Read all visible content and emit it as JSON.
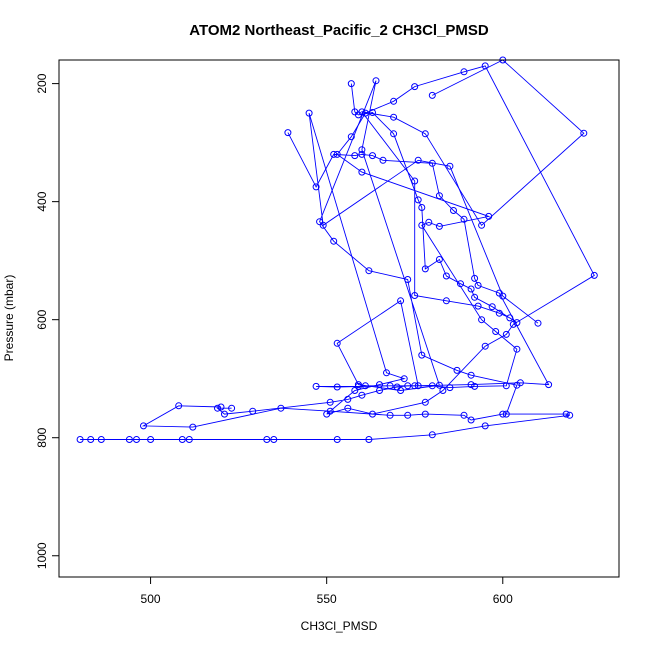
{
  "chart_data": {
    "type": "line",
    "title": "ATOM2 Northeast_Pacific_2 CH3Cl_PMSD",
    "xlabel": "CH3Cl_PMSD",
    "ylabel": "Pressure (mbar)",
    "xlim": [
      474,
      633
    ],
    "ylim": [
      1036,
      160
    ],
    "y_reversed": true,
    "grid": false,
    "legend": "none",
    "x_ticks": [
      500,
      550,
      600
    ],
    "y_ticks": [
      200,
      400,
      600,
      800,
      1000
    ],
    "series_color": "#0000ff",
    "marker": "open-circle",
    "series": [
      {
        "x": [
          523,
          519,
          521,
          529,
          551,
          556,
          560,
          565,
          570,
          573,
          580,
          585,
          592,
          601,
          604,
          598,
          594,
          577,
          579,
          582,
          596,
          560,
          553,
          557,
          561,
          569,
          575,
          589,
          595,
          626,
          603,
          601,
          595,
          583,
          578,
          563,
          556,
          550,
          558,
          565,
          572,
          567,
          545,
          549,
          576,
          585,
          600,
          610
        ],
        "y": [
          750,
          750,
          760,
          755,
          740,
          735,
          728,
          720,
          714,
          712,
          712,
          715,
          713,
          712,
          650,
          620,
          600,
          440,
          435,
          442,
          425,
          350,
          320,
          290,
          250,
          230,
          205,
          180,
          170,
          525,
          608,
          625,
          645,
          720,
          740,
          760,
          750,
          760,
          720,
          710,
          700,
          690,
          250,
          440,
          330,
          340,
          560,
          606
        ]
      },
      {
        "x": [
          480,
          483,
          486,
          494,
          496,
          500,
          509,
          511,
          533,
          535,
          553,
          562,
          580,
          595,
          619,
          618,
          600,
          591,
          589,
          578,
          573,
          568,
          551,
          537,
          512,
          498,
          508,
          520
        ],
        "y": [
          803,
          803,
          803,
          803,
          803,
          803,
          803,
          803,
          803,
          803,
          803,
          803,
          795,
          780,
          762,
          760,
          760,
          770,
          762,
          760,
          762,
          762,
          755,
          750,
          782,
          780,
          746,
          748
        ]
      },
      {
        "x": [
          539,
          547,
          552,
          558,
          560,
          563,
          566,
          580,
          582,
          586,
          589,
          592,
          593,
          599,
          613,
          605,
          591,
          575,
          561,
          559,
          547,
          553,
          568,
          576,
          571,
          553,
          559,
          571,
          582,
          560,
          564,
          548,
          552,
          562,
          573,
          577,
          587,
          591,
          604,
          601
        ],
        "y": [
          283,
          375,
          320,
          322,
          320,
          322,
          330,
          335,
          390,
          415,
          430,
          530,
          542,
          555,
          710,
          707,
          710,
          712,
          712,
          713,
          713,
          714,
          712,
          712,
          568,
          640,
          710,
          720,
          711,
          312,
          195,
          434,
          467,
          517,
          532,
          660,
          686,
          694,
          711,
          760
        ]
      },
      {
        "x": [
          557,
          558,
          559,
          563,
          569,
          576,
          577,
          578,
          582,
          584,
          588,
          591,
          592,
          597,
          604,
          602,
          599,
          593,
          584,
          575,
          575,
          560,
          569,
          578,
          594,
          623,
          600,
          580
        ],
        "y": [
          200,
          248,
          253,
          249,
          285,
          397,
          410,
          514,
          498,
          526,
          539,
          548,
          562,
          578,
          605,
          597,
          589,
          577,
          568,
          559,
          365,
          248,
          257,
          285,
          440,
          284,
          160,
          220
        ]
      }
    ]
  }
}
